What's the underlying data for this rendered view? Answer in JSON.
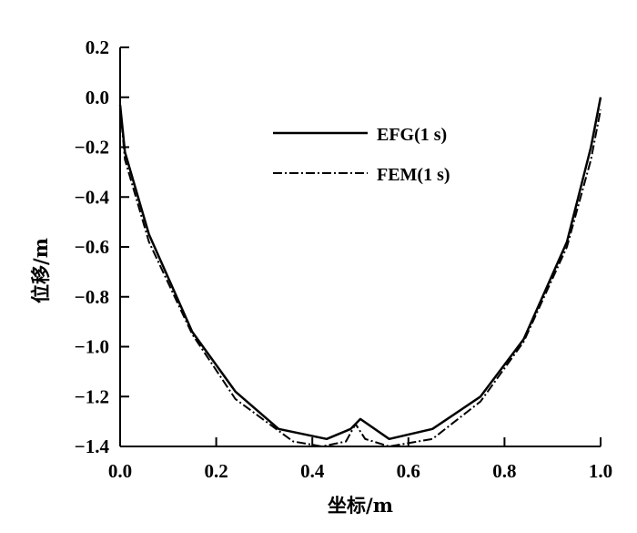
{
  "chart_data": {
    "type": "line",
    "xlabel": "坐标/m",
    "ylabel": "位移/m",
    "xlim": [
      0,
      1
    ],
    "ylim": [
      -1.4,
      0.2
    ],
    "x_ticks": [
      0.0,
      0.2,
      0.4,
      0.6,
      0.8,
      1.0
    ],
    "x_tick_labels": [
      "0.0",
      "0.2",
      "0.4",
      "0.6",
      "0.8",
      "1.0"
    ],
    "y_ticks": [
      0.2,
      0.0,
      -0.2,
      -0.4,
      -0.6,
      -0.8,
      -1.0,
      -1.2,
      -1.4
    ],
    "y_tick_labels": [
      "0.2",
      "0.0",
      "−0.2",
      "−0.4",
      "−0.6",
      "−0.8",
      "−1.0",
      "−1.2",
      "−1.4"
    ],
    "grid": false,
    "legend_position": "top-right",
    "series": [
      {
        "name": "EFG(1 s)",
        "line_style": "solid",
        "color": "#000000",
        "x": [
          0.0,
          0.01,
          0.06,
          0.15,
          0.24,
          0.33,
          0.43,
          0.48,
          0.5,
          0.56,
          0.65,
          0.75,
          0.84,
          0.93,
          0.98,
          1.0
        ],
        "y": [
          -0.03,
          -0.22,
          -0.55,
          -0.94,
          -1.18,
          -1.33,
          -1.37,
          -1.33,
          -1.29,
          -1.37,
          -1.33,
          -1.2,
          -0.97,
          -0.58,
          -0.2,
          0.0
        ]
      },
      {
        "name": "FEM(1 s)",
        "line_style": "dash-dot",
        "color": "#000000",
        "x": [
          0.0,
          0.01,
          0.06,
          0.15,
          0.24,
          0.36,
          0.42,
          0.47,
          0.49,
          0.51,
          0.56,
          0.65,
          0.75,
          0.84,
          0.93,
          0.98,
          1.0
        ],
        "y": [
          -0.04,
          -0.25,
          -0.58,
          -0.95,
          -1.21,
          -1.38,
          -1.4,
          -1.38,
          -1.31,
          -1.37,
          -1.4,
          -1.37,
          -1.22,
          -0.98,
          -0.6,
          -0.25,
          -0.05
        ]
      }
    ]
  }
}
